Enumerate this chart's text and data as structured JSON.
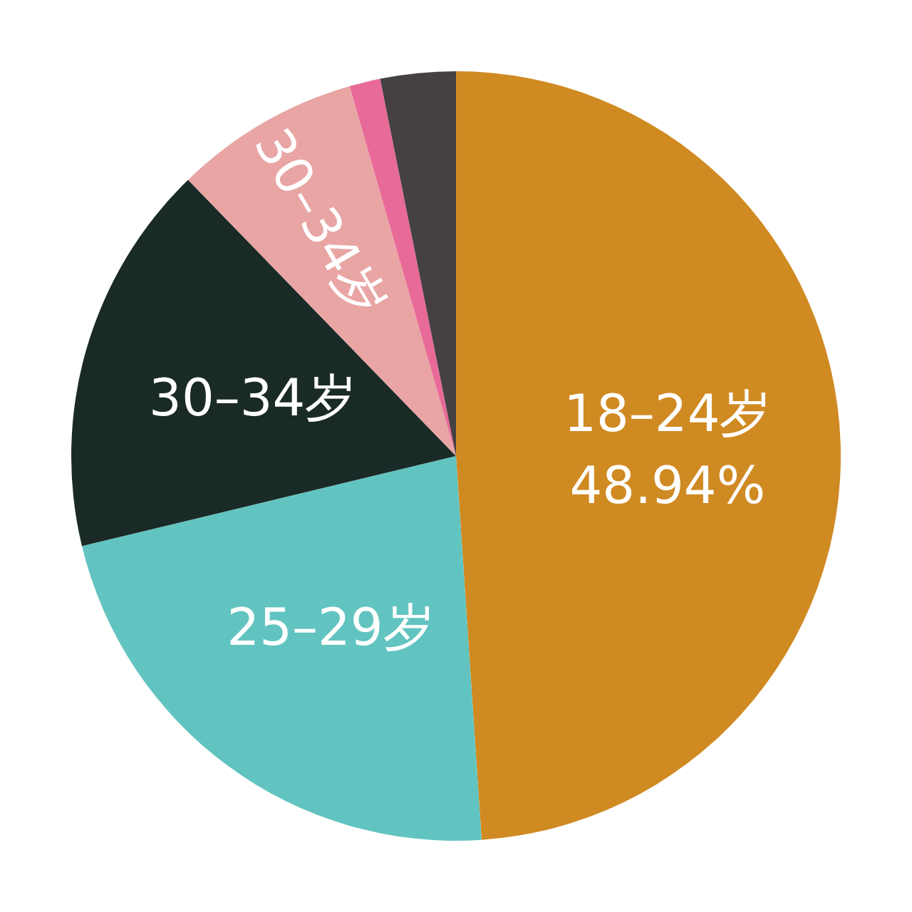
{
  "chart_data": {
    "type": "pie",
    "categories": [
      "18–24岁",
      "25–29岁",
      "30–34岁",
      "30–34岁",
      null,
      null
    ],
    "values": [
      48.94,
      22.3,
      16.5,
      7.8,
      1.3,
      3.16
    ],
    "colors": [
      "#d08a22",
      "#62c4c0",
      "#1a2a27",
      "#e8a5a4",
      "#e86a98",
      "#454041"
    ],
    "value_labels": [
      "48.94%",
      null,
      null,
      null,
      null,
      null
    ]
  }
}
